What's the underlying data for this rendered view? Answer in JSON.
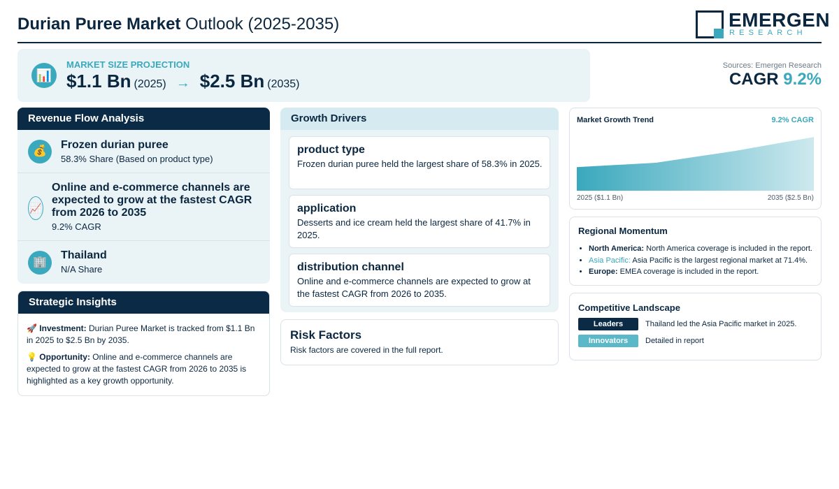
{
  "header": {
    "title_bold": "Durian Puree Market",
    "title_rest": "Outlook (2025-2035)",
    "logo_main": "EMERGEN",
    "logo_sub": "RESEARCH"
  },
  "projection": {
    "icon": "bar-chart-icon",
    "label": "MARKET SIZE PROJECTION",
    "start_value": "$1.1 Bn",
    "start_year": "(2025)",
    "arrow": "→",
    "end_value": "$2.5 Bn",
    "end_year": "(2035)"
  },
  "sources": "Sources: Emergen Research",
  "cagr": {
    "label": "CAGR",
    "value": "9.2%"
  },
  "revenue_flow": {
    "heading": "Revenue Flow Analysis",
    "items": [
      {
        "icon": "money-bag-icon",
        "title": "Frozen durian puree",
        "sub": "58.3% Share (Based on product type)"
      },
      {
        "icon": "trend-chart-icon",
        "title": "Online and e-commerce channels are expected to grow at the fastest CAGR from 2026 to 2035",
        "sub": "9.2% CAGR"
      },
      {
        "icon": "building-icon",
        "title": "Thailand",
        "sub": "N/A Share"
      }
    ]
  },
  "strategic_insights": {
    "heading": "Strategic Insights",
    "investment_label": "Investment:",
    "investment_text": "Durian Puree Market is tracked from $1.1 Bn in 2025 to $2.5 Bn by 2035.",
    "opportunity_label": "Opportunity:",
    "opportunity_text": "Online and e-commerce channels are expected to grow at the fastest CAGR from 2026 to 2035 is highlighted as a key growth opportunity."
  },
  "growth_drivers": {
    "heading": "Growth Drivers",
    "items": [
      {
        "title": "product type",
        "text": "Frozen durian puree held the largest share of 58.3% in 2025."
      },
      {
        "title": "application",
        "text": "Desserts and ice cream held the largest share of 41.7% in 2025."
      },
      {
        "title": "distribution channel",
        "text": "Online and e-commerce channels are expected to grow at the fastest CAGR from 2026 to 2035."
      }
    ]
  },
  "risk_factors": {
    "heading": "Risk Factors",
    "text": "Risk factors are covered in the full report."
  },
  "chart_data": {
    "type": "area",
    "title": "Market Growth Trend",
    "annotation": "9.2% CAGR",
    "x": [
      "2025",
      "2028",
      "2031",
      "2035"
    ],
    "values": [
      1.1,
      1.3,
      1.85,
      2.5
    ],
    "ylim": [
      0,
      2.6
    ],
    "x_start_label": "2025 ($1.1 Bn)",
    "x_end_label": "2035 ($2.5 Bn)",
    "color": "#3aa8bd",
    "grid": false
  },
  "regional_momentum": {
    "heading": "Regional Momentum",
    "items": [
      {
        "label": "North America:",
        "text": "North America coverage is included in the report."
      },
      {
        "label": "Asia Pacific:",
        "text": "Asia Pacific is the largest regional market at 71.4%."
      },
      {
        "label": "Europe:",
        "text": "EMEA coverage is included in the report."
      }
    ]
  },
  "competitive_landscape": {
    "heading": "Competitive Landscape",
    "rows": [
      {
        "tag": "Leaders",
        "text": "Thailand led the Asia Pacific market in 2025.",
        "color": "#0b2a45"
      },
      {
        "tag": "Innovators",
        "text": "Detailed in report",
        "color": "#5bb8c9"
      }
    ]
  }
}
